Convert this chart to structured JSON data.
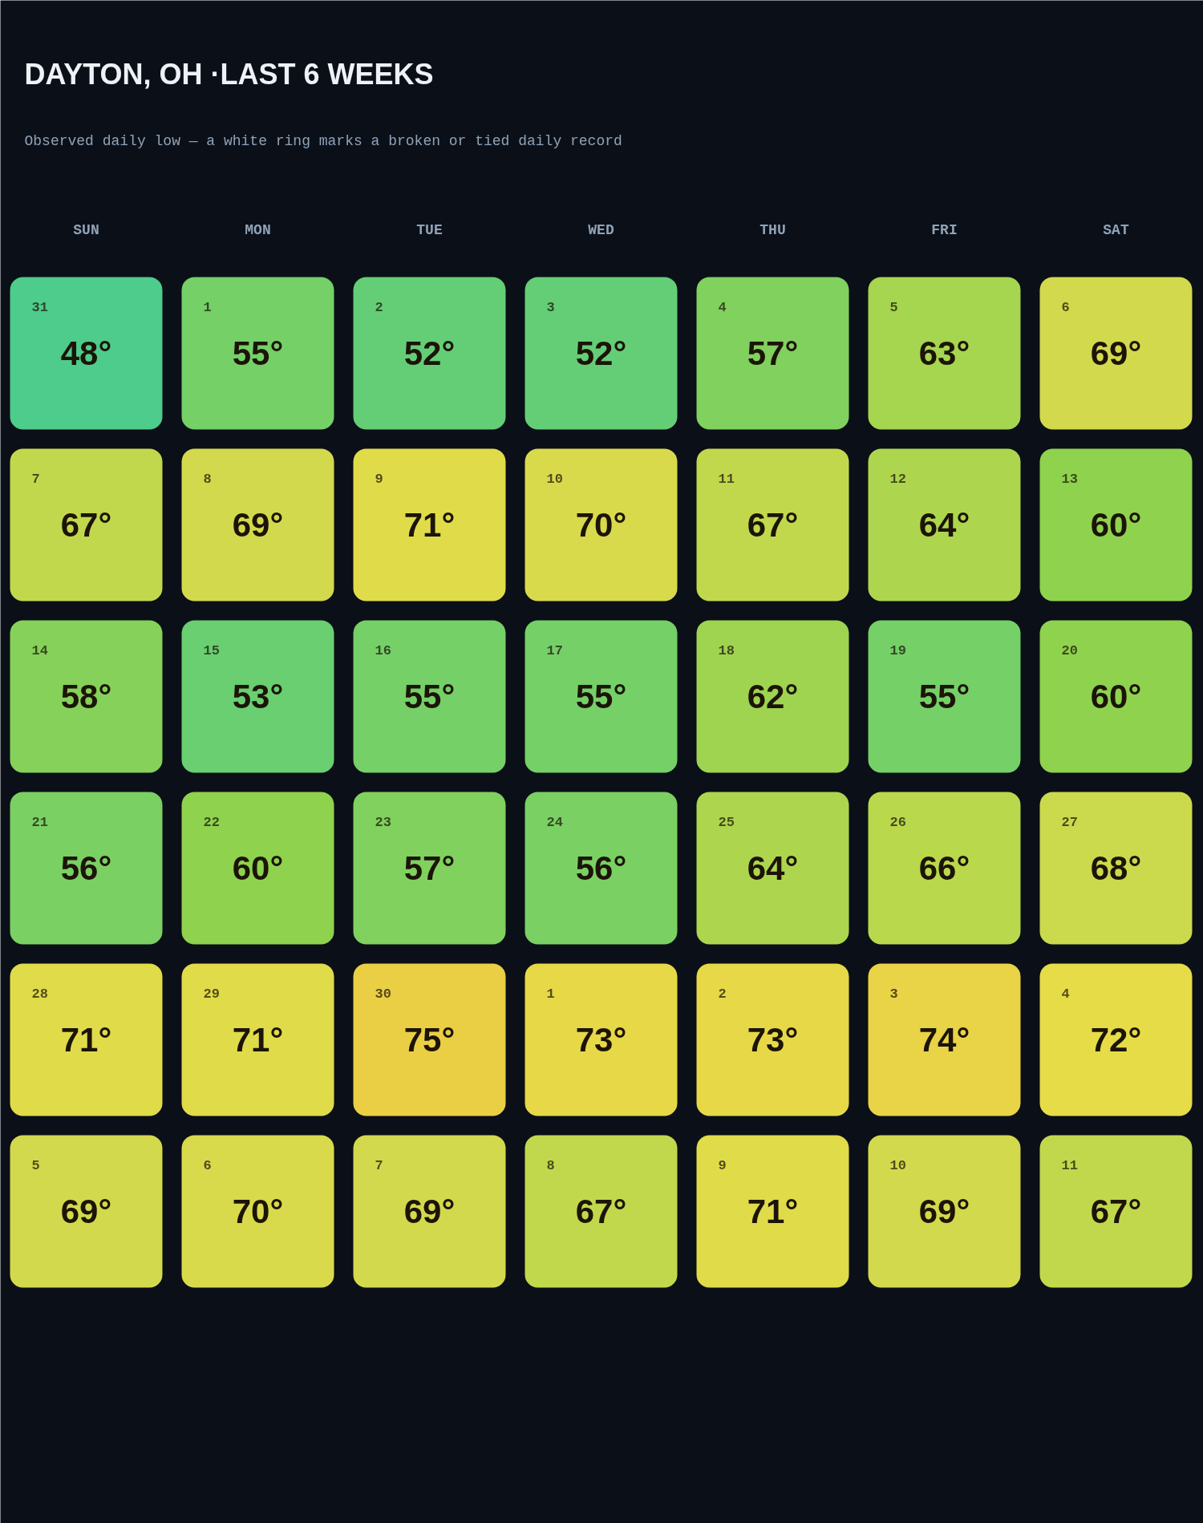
{
  "chart_data": {
    "type": "heatmap",
    "title": "DAYTON, OH ·LAST 6 WEEKS",
    "subtitle": "Observed daily low — a white ring marks a broken or tied daily record",
    "categories": [
      "SUN",
      "MON",
      "TUE",
      "WED",
      "THU",
      "FRI",
      "SAT"
    ],
    "y_categories": [
      null,
      null,
      null,
      null,
      null,
      null
    ],
    "cells": [
      [
        48,
        55,
        52,
        52,
        57,
        63,
        69
      ],
      [
        67,
        69,
        71,
        70,
        67,
        64,
        60
      ],
      [
        58,
        53,
        55,
        55,
        62,
        55,
        60
      ],
      [
        56,
        60,
        57,
        56,
        64,
        66,
        68
      ],
      [
        71,
        71,
        75,
        73,
        73,
        74,
        72
      ],
      [
        69,
        70,
        69,
        67,
        71,
        69,
        67
      ]
    ],
    "cell_labels": [
      [
        "48°",
        "55°",
        "52°",
        "52°",
        "57°",
        "63°",
        "69°"
      ],
      [
        "67°",
        "69°",
        "71°",
        "70°",
        "67°",
        "64°",
        "60°"
      ],
      [
        "58°",
        "53°",
        "55°",
        "55°",
        "62°",
        "55°",
        "60°"
      ],
      [
        "56°",
        "60°",
        "57°",
        "56°",
        "64°",
        "66°",
        "68°"
      ],
      [
        "71°",
        "71°",
        "75°",
        "73°",
        "73°",
        "74°",
        "72°"
      ],
      [
        "69°",
        "70°",
        "69°",
        "67°",
        "71°",
        "69°",
        "67°"
      ]
    ],
    "annotations": [
      "31",
      "1",
      "2",
      "3",
      "4",
      "5",
      "6",
      "7",
      "8",
      "9",
      "10",
      "11",
      "12",
      "13",
      "14",
      "15",
      "16",
      "17",
      "18",
      "19",
      "20",
      "21",
      "22",
      "23",
      "24",
      "25",
      "26",
      "27",
      "28",
      "29",
      "30",
      "1",
      "2",
      "3",
      "4",
      "5",
      "6",
      "7",
      "8",
      "9",
      "10",
      "11"
    ],
    "colors": [
      "#4ecc8c",
      "#5fce7c",
      "#6ecf6c",
      "#80d15e",
      "#8fd24e",
      "#a6d54f",
      "#bad84c",
      "#d3d94c",
      "#e6dc48",
      "#eacf45"
    ]
  }
}
